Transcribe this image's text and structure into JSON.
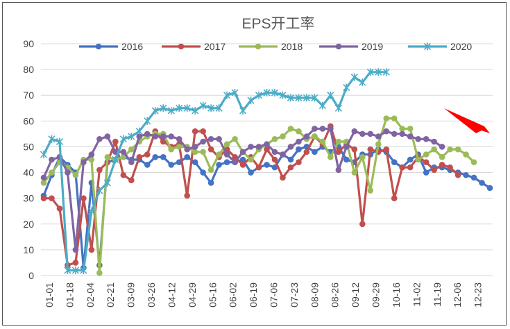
{
  "chart_data": {
    "type": "line",
    "title": "EPS开工率",
    "xlabel": "",
    "ylabel": "",
    "ylim": [
      0,
      90
    ],
    "yticks": [
      0,
      10,
      20,
      30,
      40,
      50,
      60,
      70,
      80,
      90
    ],
    "grid": true,
    "legend_position": "top",
    "x_tick_labels": [
      "01-01",
      "01-18",
      "02-04",
      "02-21",
      "03-09",
      "03-26",
      "04-12",
      "04-29",
      "05-16",
      "06-02",
      "06-19",
      "07-06",
      "07-23",
      "08-09",
      "08-26",
      "09-12",
      "09-29",
      "10-16",
      "11-02",
      "11-19",
      "12-06",
      "12-23"
    ],
    "annotation": "red arrow pointing to the end of the 2019 series",
    "series": [
      {
        "name": "2016",
        "color": "#4472C4",
        "marker": "circle",
        "values": [
          31,
          39,
          46,
          43,
          40,
          3,
          36,
          4,
          44,
          45,
          46,
          45,
          45,
          43,
          46,
          46,
          43,
          44,
          46,
          44,
          40,
          36,
          43,
          44,
          44,
          45,
          40,
          42,
          43,
          42,
          47,
          45,
          49,
          50,
          48,
          50,
          48,
          50,
          45,
          44,
          47,
          47,
          49,
          48,
          44,
          42,
          45,
          47,
          40,
          42,
          42,
          41,
          40,
          39,
          38,
          36,
          34
        ]
      },
      {
        "name": "2017",
        "color": "#C0504D",
        "marker": "circle",
        "values": [
          30,
          30,
          26,
          4,
          5,
          30,
          10,
          41,
          44,
          52,
          39,
          37,
          46,
          47,
          56,
          52,
          50,
          51,
          31,
          56,
          56,
          49,
          46,
          49,
          46,
          43,
          46,
          42,
          49,
          45,
          38,
          42,
          44,
          48,
          54,
          51,
          58,
          48,
          51,
          49,
          20,
          49,
          48,
          49,
          30,
          42,
          42,
          46,
          44,
          41,
          43,
          42,
          39
        ]
      },
      {
        "name": "2018",
        "color": "#9BBB59",
        "marker": "circle",
        "values": [
          36,
          40,
          44,
          42,
          39,
          45,
          45,
          1,
          46,
          45,
          46,
          49,
          52,
          54,
          55,
          55,
          49,
          50,
          50,
          48,
          48,
          41,
          47,
          51,
          53,
          48,
          45,
          49,
          51,
          53,
          54,
          57,
          56,
          53,
          54,
          52,
          46,
          52,
          52,
          40,
          46,
          33,
          51,
          61,
          61,
          57,
          57,
          45,
          47,
          49,
          46,
          49,
          49,
          47,
          44
        ]
      },
      {
        "name": "2019",
        "color": "#8064A2",
        "marker": "circle",
        "values": [
          38,
          45,
          46,
          40,
          10,
          44,
          47,
          53,
          54,
          48,
          48,
          44,
          54,
          55,
          54,
          54,
          54,
          53,
          49,
          50,
          52,
          53,
          53,
          47,
          44,
          48,
          50,
          50,
          51,
          48,
          47,
          50,
          52,
          54,
          57,
          57,
          57,
          41,
          50,
          56,
          55,
          55,
          54,
          56,
          55,
          55,
          54,
          53,
          53,
          52,
          50
        ]
      },
      {
        "name": "2020",
        "color": "#4BACC6",
        "marker": "star",
        "values": [
          47,
          53,
          52,
          2,
          2,
          2,
          25,
          33,
          36,
          45,
          53,
          54,
          56,
          60,
          64,
          65,
          64,
          65,
          65,
          64,
          66,
          65,
          65,
          70,
          71,
          64,
          68,
          70,
          71,
          71,
          70,
          69,
          69,
          69,
          69,
          66,
          70,
          65,
          73,
          77,
          75,
          79,
          79,
          79
        ]
      }
    ]
  }
}
